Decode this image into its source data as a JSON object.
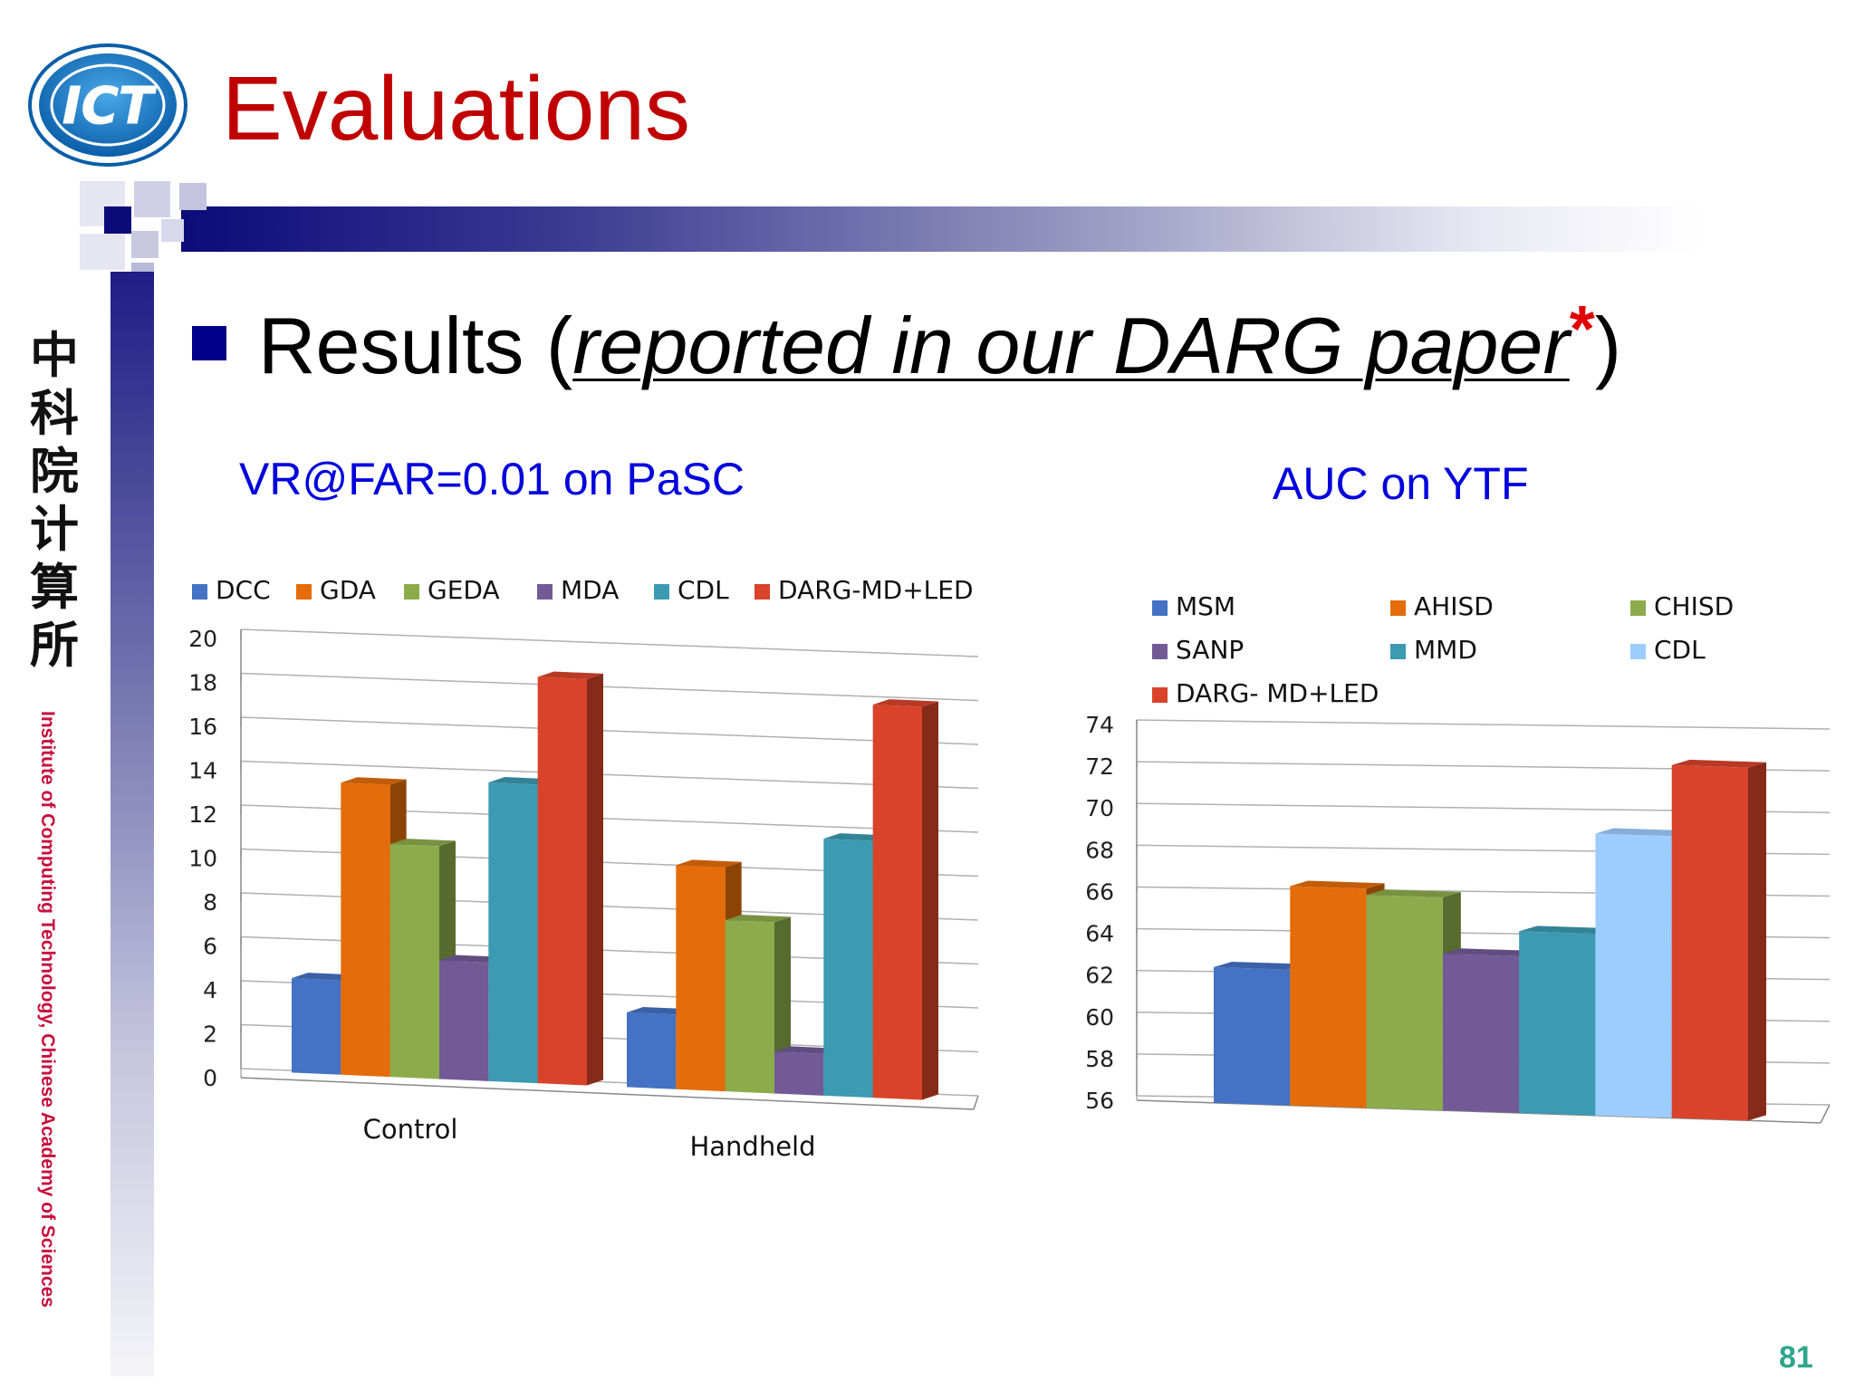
{
  "slide": {
    "title": "Evaluations",
    "logo_text": "ICT",
    "chinese_name": "中科院计算所",
    "institute_name": "Institute of Computing Technology, Chinese Academy of Sciences",
    "bullet": {
      "prefix": "Results (",
      "link_text": "reported in our DARG paper",
      "star": "*",
      "suffix": ")"
    },
    "page_number": "81"
  },
  "colors": {
    "title": "#c00000",
    "chart_title": "#0000dd",
    "bullet": "#00008b",
    "page_number": "#2ea68e"
  },
  "chart_data": [
    {
      "type": "bar",
      "title": "VR@FAR=0.01  on PaSC",
      "categories": [
        "Control",
        "Handheld"
      ],
      "ylim": [
        0,
        20
      ],
      "yticks": [
        "0",
        "2",
        "4",
        "6",
        "8",
        "10",
        "12",
        "14",
        "16",
        "18",
        "20"
      ],
      "legend_position": "top",
      "grid": true,
      "series": [
        {
          "name": "DCC",
          "color": "#4472c4",
          "values": [
            4.3,
            3.4
          ]
        },
        {
          "name": "GDA",
          "color": "#e46c0a",
          "values": [
            13.3,
            10.2
          ]
        },
        {
          "name": "GEDA",
          "color": "#8cac4c",
          "values": [
            10.6,
            7.8
          ]
        },
        {
          "name": "MDA",
          "color": "#725a96",
          "values": [
            5.4,
            1.9
          ]
        },
        {
          "name": "CDL",
          "color": "#3c9ab2",
          "values": [
            13.6,
            11.7
          ]
        },
        {
          "name": "DARG-MD+LED",
          "color": "#d8432a",
          "values": [
            18.5,
            17.9
          ]
        }
      ]
    },
    {
      "type": "bar",
      "title": "AUC on YTF",
      "categories": [
        ""
      ],
      "ylim": [
        56,
        74
      ],
      "yticks": [
        "56",
        "58",
        "60",
        "62",
        "64",
        "66",
        "68",
        "70",
        "72",
        "74"
      ],
      "legend_position": "top",
      "grid": true,
      "series": [
        {
          "name": "MSM",
          "color": "#4472c4",
          "values": [
            62.5
          ]
        },
        {
          "name": "AHISD",
          "color": "#e46c0a",
          "values": [
            66.5
          ]
        },
        {
          "name": "CHISD",
          "color": "#8cac4c",
          "values": [
            66.2
          ]
        },
        {
          "name": "SANP",
          "color": "#725a96",
          "values": [
            63.5
          ]
        },
        {
          "name": "MMD",
          "color": "#3c9ab2",
          "values": [
            64.7
          ]
        },
        {
          "name": "CDL",
          "color": "#9dcdff",
          "values": [
            69.5
          ]
        },
        {
          "name": "DARG- MD+LED",
          "color": "#d8432a",
          "values": [
            72.9
          ]
        }
      ]
    }
  ]
}
